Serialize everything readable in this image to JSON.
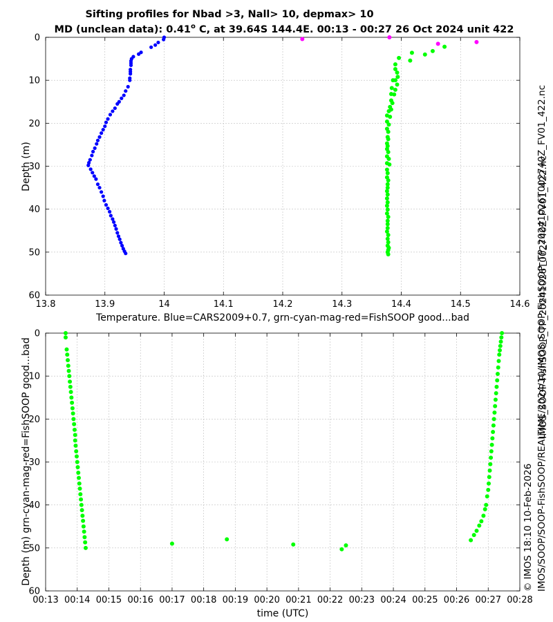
{
  "title_line1": "Sifting profiles for Nbad >3, Nall> 10, depmax> 10",
  "title_line2_a": "MD (unclean data): 0.41",
  "title_line2_deg": "o",
  "title_line2_b": " C, at 39.64S 144.4E. 00:13 - 00:27 26 Oct 2024 unit 422",
  "side_text_1": "IMOS_SOOP-FishSOOP_TP_20241026T002740Z_FV01_422.nc",
  "side_text_2": "© IMOS 18:10 10-Feb-2026",
  "side_text_3": "IMOS/SOOP/SOOP-FishSOOP/REALTIME/2024/10/IMOS_SOOP-FishSOOP_TP_20241026T002740Z_FV01_422.nc",
  "colors": {
    "blue": "#0000ff",
    "green": "#00ff00",
    "magenta": "#ff00ff"
  },
  "chart_data": [
    {
      "type": "scatter",
      "xlabel": "Temperature. Blue=CARS2009+0.7, grn-cyan-mag-red=FishSOOP good...bad",
      "ylabel": "Depth (m)",
      "xlim": [
        13.8,
        14.6
      ],
      "ylim": [
        0,
        60
      ],
      "y_reversed": true,
      "grid": true,
      "xticks": [
        13.8,
        13.9,
        14.0,
        14.1,
        14.2,
        14.3,
        14.4,
        14.5,
        14.6
      ],
      "xtick_labels": [
        "13.8",
        "13.9",
        "14",
        "14.1",
        "14.2",
        "14.3",
        "14.4",
        "14.5",
        "14.6"
      ],
      "yticks": [
        0,
        10,
        20,
        30,
        40,
        50,
        60
      ],
      "ytick_labels": [
        "0",
        "10",
        "20",
        "30",
        "40",
        "50",
        "60"
      ],
      "series": [
        {
          "color": "#0000ff",
          "marker_r": 2.6,
          "points": [
            [
              14.0,
              0
            ],
            [
              13.999,
              0.5
            ],
            [
              13.99,
              1.2
            ],
            [
              13.985,
              1.8
            ],
            [
              13.978,
              2.3
            ],
            [
              13.961,
              3.5
            ],
            [
              13.957,
              3.9
            ],
            [
              13.948,
              4.5
            ],
            [
              13.945,
              5.0
            ],
            [
              13.944,
              5.5
            ],
            [
              13.944,
              6.0
            ],
            [
              13.944,
              6.5
            ],
            [
              13.943,
              7.5
            ],
            [
              13.943,
              8.0
            ],
            [
              13.943,
              8.5
            ],
            [
              13.942,
              9.5
            ],
            [
              13.942,
              10.0
            ],
            [
              13.939,
              11.5
            ],
            [
              13.935,
              12.5
            ],
            [
              13.932,
              13.5
            ],
            [
              13.928,
              14.2
            ],
            [
              13.924,
              15.0
            ],
            [
              13.921,
              15.5
            ],
            [
              13.917,
              16.5
            ],
            [
              13.913,
              17.2
            ],
            [
              13.909,
              18.0
            ],
            [
              13.905,
              19.0
            ],
            [
              13.902,
              19.8
            ],
            [
              13.9,
              20.7
            ],
            [
              13.897,
              21.5
            ],
            [
              13.894,
              22.3
            ],
            [
              13.891,
              23.2
            ],
            [
              13.888,
              24.0
            ],
            [
              13.886,
              24.8
            ],
            [
              13.883,
              25.8
            ],
            [
              13.88,
              26.6
            ],
            [
              13.878,
              27.5
            ],
            [
              13.875,
              28.5
            ],
            [
              13.873,
              29.2
            ],
            [
              13.872,
              29.8
            ],
            [
              13.876,
              30.7
            ],
            [
              13.879,
              31.5
            ],
            [
              13.882,
              32.3
            ],
            [
              13.885,
              33.0
            ],
            [
              13.888,
              34.2
            ],
            [
              13.891,
              35.0
            ],
            [
              13.894,
              36.0
            ],
            [
              13.897,
              37.0
            ],
            [
              13.899,
              38.0
            ],
            [
              13.902,
              39.0
            ],
            [
              13.905,
              39.8
            ],
            [
              13.908,
              40.6
            ],
            [
              13.91,
              41.5
            ],
            [
              13.913,
              42.3
            ],
            [
              13.915,
              43.0
            ],
            [
              13.917,
              43.8
            ],
            [
              13.919,
              44.6
            ],
            [
              13.921,
              45.5
            ],
            [
              13.923,
              46.3
            ],
            [
              13.925,
              47.0
            ],
            [
              13.927,
              47.8
            ],
            [
              13.929,
              48.5
            ],
            [
              13.931,
              49.2
            ],
            [
              13.933,
              49.8
            ],
            [
              13.935,
              50.3
            ]
          ]
        },
        {
          "color": "#00ff00",
          "marker_r": 3.0,
          "points": [
            [
              14.473,
              2.2
            ],
            [
              14.453,
              3.2
            ],
            [
              14.44,
              4.0
            ],
            [
              14.418,
              3.6
            ],
            [
              14.415,
              5.4
            ],
            [
              14.396,
              4.8
            ],
            [
              14.39,
              6.3
            ],
            [
              14.39,
              7.4
            ],
            [
              14.393,
              8.2
            ],
            [
              14.394,
              9.2
            ],
            [
              14.386,
              10.0
            ],
            [
              14.39,
              10.0
            ],
            [
              14.393,
              11.0
            ],
            [
              14.384,
              11.8
            ],
            [
              14.39,
              12.2
            ],
            [
              14.383,
              13.2
            ],
            [
              14.388,
              13.3
            ],
            [
              14.383,
              14.7
            ],
            [
              14.385,
              15.3
            ],
            [
              14.381,
              16.2
            ],
            [
              14.383,
              16.8
            ],
            [
              14.379,
              17.2
            ],
            [
              14.376,
              18.2
            ],
            [
              14.381,
              18.5
            ],
            [
              14.376,
              19.6
            ],
            [
              14.379,
              20.3
            ],
            [
              14.376,
              21.3
            ],
            [
              14.378,
              22.0
            ],
            [
              14.377,
              23.2
            ],
            [
              14.378,
              23.7
            ],
            [
              14.376,
              24.7
            ],
            [
              14.377,
              25.3
            ],
            [
              14.376,
              26.0
            ],
            [
              14.378,
              26.7
            ],
            [
              14.376,
              27.7
            ],
            [
              14.379,
              28.3
            ],
            [
              14.376,
              29.3
            ],
            [
              14.38,
              29.6
            ],
            [
              14.376,
              30.8
            ],
            [
              14.377,
              31.6
            ],
            [
              14.376,
              32.6
            ],
            [
              14.378,
              33.3
            ],
            [
              14.377,
              34.2
            ],
            [
              14.377,
              35.0
            ],
            [
              14.376,
              35.8
            ],
            [
              14.377,
              36.6
            ],
            [
              14.376,
              37.5
            ],
            [
              14.377,
              38.4
            ],
            [
              14.376,
              39.2
            ],
            [
              14.377,
              40.1
            ],
            [
              14.376,
              41.0
            ],
            [
              14.378,
              41.8
            ],
            [
              14.377,
              42.7
            ],
            [
              14.377,
              43.5
            ],
            [
              14.377,
              44.4
            ],
            [
              14.376,
              45.2
            ],
            [
              14.378,
              46.0
            ],
            [
              14.377,
              46.9
            ],
            [
              14.378,
              47.7
            ],
            [
              14.377,
              48.5
            ],
            [
              14.379,
              49.0
            ],
            [
              14.378,
              49.5
            ],
            [
              14.377,
              50.0
            ],
            [
              14.378,
              50.5
            ]
          ]
        },
        {
          "color": "#ff00ff",
          "marker_r": 3.0,
          "points": [
            [
              14.233,
              0.4
            ],
            [
              14.38,
              0.0
            ],
            [
              14.462,
              1.5
            ],
            [
              14.527,
              1.1
            ]
          ]
        }
      ]
    },
    {
      "type": "scatter",
      "xlabel": "time (UTC)",
      "ylabel": "Depth (m) grn-cyan-mag-red=FishSOOP good...bad",
      "xlim": [
        "00:13",
        "00:28"
      ],
      "ylim": [
        0,
        60
      ],
      "y_reversed": true,
      "grid": true,
      "xticks": [
        "00:13",
        "00:14",
        "00:15",
        "00:16",
        "00:17",
        "00:18",
        "00:19",
        "00:20",
        "00:21",
        "00:22",
        "00:23",
        "00:24",
        "00:25",
        "00:26",
        "00:27",
        "00:28"
      ],
      "yticks": [
        0,
        10,
        20,
        30,
        40,
        50,
        60
      ],
      "ytick_labels": [
        "0",
        "10",
        "20",
        "30",
        "40",
        "50",
        "60"
      ],
      "series": [
        {
          "color": "#00ff00",
          "marker_r": 3.0,
          "points": [
            [
              "00:13:38",
              0.0
            ],
            [
              "00:13:38",
              1.0
            ],
            [
              "00:13:40",
              3.8
            ],
            [
              "00:13:41",
              5.0
            ],
            [
              "00:13:42",
              6.3
            ],
            [
              "00:13:43",
              7.6
            ],
            [
              "00:13:44",
              8.8
            ],
            [
              "00:13:45",
              10.0
            ],
            [
              "00:13:46",
              11.3
            ],
            [
              "00:13:47",
              12.5
            ],
            [
              "00:13:48",
              13.7
            ],
            [
              "00:13:49",
              15.0
            ],
            [
              "00:13:50",
              16.2
            ],
            [
              "00:13:51",
              17.5
            ],
            [
              "00:13:52",
              18.7
            ],
            [
              "00:13:53",
              20.0
            ],
            [
              "00:13:54",
              21.2
            ],
            [
              "00:13:55",
              22.5
            ],
            [
              "00:13:56",
              23.7
            ],
            [
              "00:13:56",
              25.0
            ],
            [
              "00:13:57",
              26.2
            ],
            [
              "00:13:58",
              27.5
            ],
            [
              "00:13:59",
              28.7
            ],
            [
              "00:14:00",
              30.0
            ],
            [
              "00:14:01",
              31.2
            ],
            [
              "00:14:02",
              32.5
            ],
            [
              "00:14:03",
              33.7
            ],
            [
              "00:14:04",
              35.0
            ],
            [
              "00:14:05",
              36.2
            ],
            [
              "00:14:06",
              37.5
            ],
            [
              "00:14:07",
              38.7
            ],
            [
              "00:14:08",
              40.0
            ],
            [
              "00:14:09",
              41.2
            ],
            [
              "00:14:10",
              42.5
            ],
            [
              "00:14:11",
              43.7
            ],
            [
              "00:14:12",
              45.0
            ],
            [
              "00:14:13",
              46.2
            ],
            [
              "00:14:14",
              47.5
            ],
            [
              "00:14:15",
              48.7
            ],
            [
              "00:14:16",
              50.0
            ],
            [
              "00:17:00",
              49.0
            ],
            [
              "00:18:44",
              48.0
            ],
            [
              "00:20:50",
              49.2
            ],
            [
              "00:22:22",
              50.3
            ],
            [
              "00:22:30",
              49.4
            ],
            [
              "00:26:27",
              48.2
            ],
            [
              "00:26:33",
              47.0
            ],
            [
              "00:26:38",
              46.0
            ],
            [
              "00:26:43",
              44.8
            ],
            [
              "00:26:47",
              43.8
            ],
            [
              "00:26:51",
              42.5
            ],
            [
              "00:26:54",
              41.0
            ],
            [
              "00:26:56",
              40.0
            ],
            [
              "00:26:58",
              38.0
            ],
            [
              "00:27:00",
              36.5
            ],
            [
              "00:27:01",
              35.0
            ],
            [
              "00:27:02",
              33.5
            ],
            [
              "00:27:03",
              32.0
            ],
            [
              "00:27:04",
              30.5
            ],
            [
              "00:27:05",
              29.0
            ],
            [
              "00:27:06",
              27.5
            ],
            [
              "00:27:07",
              26.0
            ],
            [
              "00:27:08",
              24.5
            ],
            [
              "00:27:09",
              23.0
            ],
            [
              "00:27:10",
              21.5
            ],
            [
              "00:27:11",
              20.0
            ],
            [
              "00:27:12",
              18.5
            ],
            [
              "00:27:13",
              17.0
            ],
            [
              "00:27:14",
              15.5
            ],
            [
              "00:27:15",
              14.0
            ],
            [
              "00:27:16",
              12.5
            ],
            [
              "00:27:17",
              11.0
            ],
            [
              "00:27:18",
              9.5
            ],
            [
              "00:27:19",
              8.0
            ],
            [
              "00:27:20",
              6.5
            ],
            [
              "00:27:21",
              5.0
            ],
            [
              "00:27:22",
              4.0
            ],
            [
              "00:27:23",
              3.0
            ],
            [
              "00:27:24",
              2.0
            ],
            [
              "00:27:25",
              1.0
            ],
            [
              "00:27:26",
              0.0
            ]
          ]
        }
      ]
    }
  ]
}
